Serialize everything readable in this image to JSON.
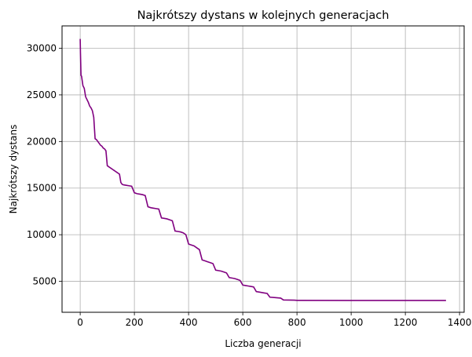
{
  "chart_data": {
    "type": "line",
    "title": "Najkrótszy dystans w kolejnych generacjach",
    "xlabel": "Liczba generacji",
    "ylabel": "Najkrótszy dystans",
    "xlim": [
      -67,
      1417
    ],
    "ylim": [
      1680,
      32400
    ],
    "x_ticks": [
      0,
      200,
      400,
      600,
      800,
      1000,
      1200,
      1400
    ],
    "x_tick_labels": [
      "0",
      "200",
      "400",
      "600",
      "800",
      "1000",
      "1200",
      "1400"
    ],
    "y_ticks": [
      5000,
      10000,
      15000,
      20000,
      25000,
      30000
    ],
    "y_tick_labels": [
      "5000",
      "10000",
      "15000",
      "20000",
      "25000",
      "30000"
    ],
    "grid": true,
    "series": [
      {
        "color": "#800080",
        "x": [
          0,
          1,
          3,
          5,
          10,
          15,
          20,
          25,
          30,
          35,
          40,
          45,
          50,
          55,
          60,
          65,
          70,
          75,
          80,
          85,
          90,
          95,
          100,
          105,
          110,
          115,
          120,
          125,
          130,
          135,
          140,
          145,
          150,
          155,
          160,
          170,
          180,
          190,
          200,
          210,
          220,
          230,
          240,
          250,
          260,
          270,
          280,
          290,
          300,
          310,
          320,
          330,
          340,
          350,
          360,
          370,
          380,
          390,
          400,
          410,
          420,
          430,
          440,
          450,
          460,
          470,
          480,
          490,
          500,
          510,
          520,
          530,
          540,
          550,
          560,
          570,
          580,
          590,
          600,
          610,
          620,
          630,
          640,
          650,
          660,
          670,
          680,
          690,
          700,
          720,
          740,
          750,
          770,
          790,
          800,
          1000,
          1200,
          1350
        ],
        "y": [
          31000,
          29500,
          27100,
          27000,
          26000,
          25700,
          24800,
          24500,
          24200,
          23800,
          23600,
          23300,
          22600,
          20300,
          20200,
          20000,
          19800,
          19600,
          19500,
          19300,
          19200,
          19000,
          17400,
          17300,
          17200,
          17100,
          17000,
          16900,
          16800,
          16700,
          16600,
          16500,
          15600,
          15400,
          15350,
          15300,
          15250,
          15200,
          14500,
          14400,
          14350,
          14300,
          14200,
          13000,
          12900,
          12850,
          12800,
          12750,
          11800,
          11750,
          11700,
          11600,
          11500,
          10400,
          10350,
          10300,
          10200,
          10000,
          9000,
          8900,
          8800,
          8600,
          8400,
          7300,
          7200,
          7100,
          7000,
          6900,
          6200,
          6150,
          6100,
          6000,
          5900,
          5400,
          5350,
          5300,
          5200,
          5100,
          4600,
          4550,
          4500,
          4450,
          4400,
          3900,
          3850,
          3800,
          3750,
          3700,
          3300,
          3250,
          3200,
          3000,
          2990,
          2980,
          2960,
          2950,
          2950,
          2950
        ]
      }
    ]
  }
}
